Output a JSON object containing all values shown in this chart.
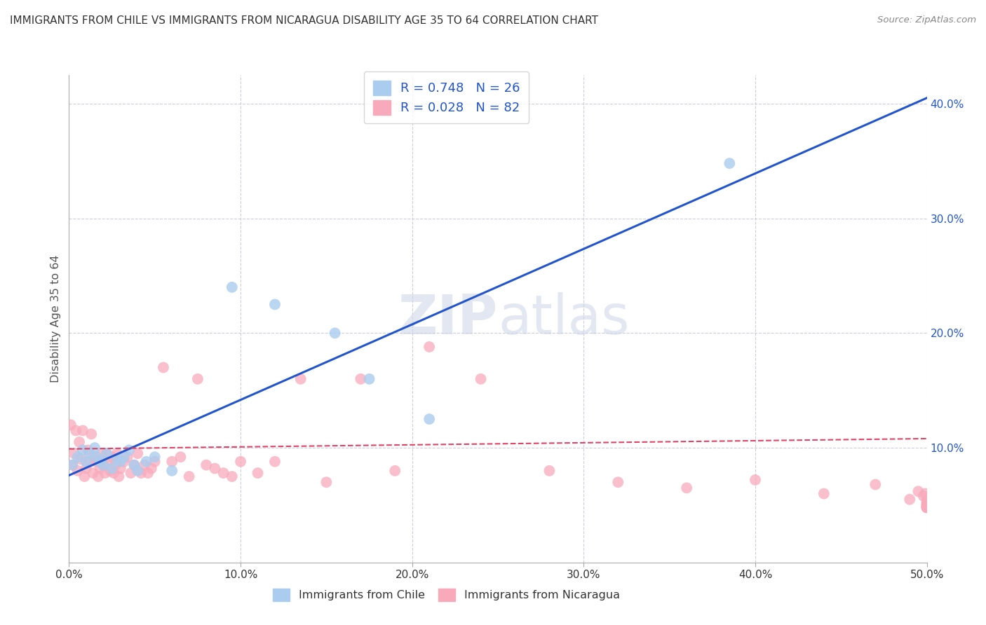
{
  "title": "IMMIGRANTS FROM CHILE VS IMMIGRANTS FROM NICARAGUA DISABILITY AGE 35 TO 64 CORRELATION CHART",
  "source": "Source: ZipAtlas.com",
  "ylabel": "Disability Age 35 to 64",
  "xlim": [
    0.0,
    0.5
  ],
  "ylim": [
    0.0,
    0.425
  ],
  "x_ticks": [
    0.0,
    0.1,
    0.2,
    0.3,
    0.4,
    0.5
  ],
  "y_ticks": [
    0.0,
    0.1,
    0.2,
    0.3,
    0.4
  ],
  "watermark": "ZIPatlas",
  "chile_R": 0.748,
  "chile_N": 26,
  "nicaragua_R": 0.028,
  "nicaragua_N": 82,
  "chile_color": "#aaccee",
  "chile_line_color": "#2255cc",
  "nicaragua_color": "#f8aabb",
  "nicaragua_line_color": "#dd4466",
  "grid_color": "#ccccdd",
  "chile_line_x0": 0.0,
  "chile_line_y0": 0.076,
  "chile_line_x1": 0.5,
  "chile_line_y1": 0.405,
  "nicaragua_line_x0": 0.0,
  "nicaragua_line_y0": 0.099,
  "nicaragua_line_x1": 0.5,
  "nicaragua_line_y1": 0.108,
  "chile_scatter_x": [
    0.002,
    0.005,
    0.008,
    0.01,
    0.012,
    0.015,
    0.016,
    0.018,
    0.02,
    0.022,
    0.025,
    0.028,
    0.03,
    0.032,
    0.035,
    0.038,
    0.04,
    0.045,
    0.05,
    0.06,
    0.095,
    0.12,
    0.155,
    0.175,
    0.21,
    0.385
  ],
  "chile_scatter_y": [
    0.085,
    0.092,
    0.098,
    0.088,
    0.095,
    0.1,
    0.092,
    0.088,
    0.085,
    0.095,
    0.082,
    0.09,
    0.088,
    0.092,
    0.098,
    0.085,
    0.08,
    0.088,
    0.092,
    0.08,
    0.24,
    0.225,
    0.2,
    0.16,
    0.125,
    0.348
  ],
  "nicaragua_scatter_x": [
    0.001,
    0.002,
    0.003,
    0.004,
    0.005,
    0.006,
    0.007,
    0.008,
    0.009,
    0.01,
    0.011,
    0.012,
    0.013,
    0.014,
    0.015,
    0.016,
    0.017,
    0.018,
    0.019,
    0.02,
    0.021,
    0.022,
    0.023,
    0.024,
    0.025,
    0.026,
    0.027,
    0.028,
    0.029,
    0.03,
    0.032,
    0.034,
    0.036,
    0.038,
    0.04,
    0.042,
    0.044,
    0.046,
    0.048,
    0.05,
    0.055,
    0.06,
    0.065,
    0.07,
    0.075,
    0.08,
    0.085,
    0.09,
    0.095,
    0.1,
    0.11,
    0.12,
    0.135,
    0.15,
    0.17,
    0.19,
    0.21,
    0.24,
    0.28,
    0.32,
    0.36,
    0.4,
    0.44,
    0.47,
    0.49,
    0.495,
    0.498,
    0.499,
    0.5,
    0.5,
    0.5,
    0.5,
    0.5,
    0.5,
    0.5,
    0.5,
    0.5,
    0.5,
    0.5,
    0.5,
    0.5,
    0.5
  ],
  "nicaragua_scatter_y": [
    0.12,
    0.085,
    0.095,
    0.115,
    0.08,
    0.105,
    0.09,
    0.115,
    0.075,
    0.082,
    0.098,
    0.088,
    0.112,
    0.078,
    0.092,
    0.088,
    0.075,
    0.082,
    0.095,
    0.085,
    0.078,
    0.095,
    0.088,
    0.08,
    0.092,
    0.078,
    0.085,
    0.095,
    0.075,
    0.082,
    0.088,
    0.092,
    0.078,
    0.085,
    0.095,
    0.078,
    0.085,
    0.078,
    0.082,
    0.088,
    0.17,
    0.088,
    0.092,
    0.075,
    0.16,
    0.085,
    0.082,
    0.078,
    0.075,
    0.088,
    0.078,
    0.088,
    0.16,
    0.07,
    0.16,
    0.08,
    0.188,
    0.16,
    0.08,
    0.07,
    0.065,
    0.072,
    0.06,
    0.068,
    0.055,
    0.062,
    0.058,
    0.06,
    0.052,
    0.055,
    0.048,
    0.05,
    0.052,
    0.048,
    0.05,
    0.048,
    0.05,
    0.048,
    0.052,
    0.048,
    0.05,
    0.048
  ]
}
